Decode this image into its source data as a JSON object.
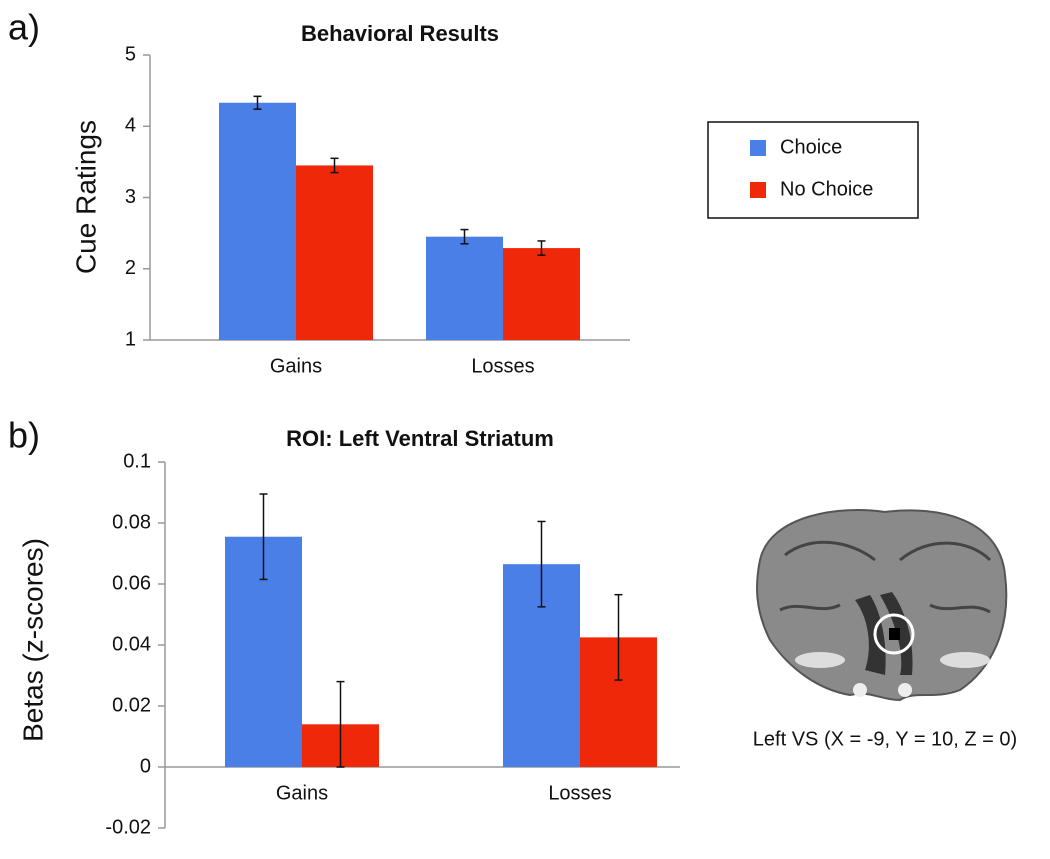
{
  "chart_data": [
    {
      "type": "bar",
      "panel_label": "a)",
      "title": "Behavioral Results",
      "y_label": "Cue Ratings",
      "categories": [
        "Gains",
        "Losses"
      ],
      "series": [
        {
          "name": "Choice",
          "color": "#4a7fe8",
          "values": [
            4.33,
            2.45
          ],
          "errors": [
            0.09,
            0.1
          ]
        },
        {
          "name": "No Choice",
          "color": "#f0280a",
          "values": [
            3.45,
            2.29
          ],
          "errors": [
            0.1,
            0.1
          ]
        }
      ],
      "ylim": [
        1,
        5
      ],
      "yticks": [
        1,
        2,
        3,
        4,
        5
      ],
      "legend": "right"
    },
    {
      "type": "bar",
      "panel_label": "b)",
      "title": "ROI: Left Ventral Striatum",
      "y_label": "Betas (z-scores)",
      "image_caption": "Left VS (X = -9, Y = 10, Z = 0)",
      "categories": [
        "Gains",
        "Losses"
      ],
      "series": [
        {
          "color": "#4a7fe8",
          "values": [
            0.0755,
            0.0665
          ],
          "errors": [
            0.014,
            0.014
          ]
        },
        {
          "color": "#f0280a",
          "values": [
            0.014,
            0.0425
          ],
          "errors": [
            0.014,
            0.014
          ]
        }
      ],
      "ylim": [
        -0.02,
        0.1
      ],
      "yticks": [
        -0.02,
        0,
        0.02,
        0.04,
        0.06,
        0.08,
        0.1
      ]
    }
  ]
}
